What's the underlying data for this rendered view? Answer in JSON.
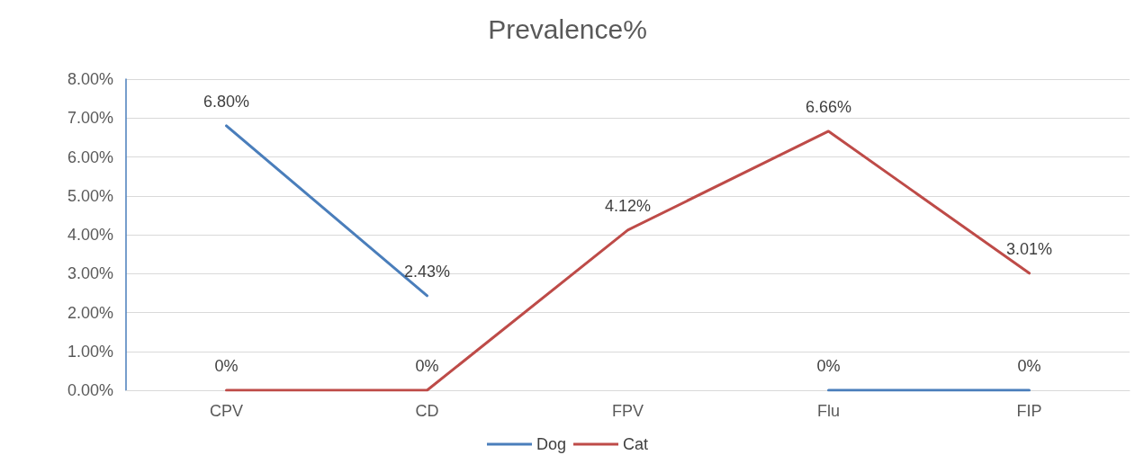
{
  "chart_data": {
    "type": "line",
    "title": "Prevalence%",
    "categories": [
      "CPV",
      "CD",
      "FPV",
      "Flu",
      "FIP"
    ],
    "series": [
      {
        "name": "Dog",
        "color": "#4a7ebb",
        "values": [
          6.8,
          2.43,
          null,
          0,
          0
        ],
        "value_labels": [
          "6.80%",
          "2.43%",
          null,
          "0%",
          "0%"
        ]
      },
      {
        "name": "Cat",
        "color": "#be4b48",
        "values": [
          0,
          0,
          4.12,
          6.66,
          3.01
        ],
        "value_labels": [
          "0%",
          "0%",
          "4.12%",
          "6.66%",
          "3.01%"
        ]
      }
    ],
    "ylim": [
      0,
      8
    ],
    "yticks": [
      {
        "value": 0,
        "label": "0.00%"
      },
      {
        "value": 1,
        "label": "1.00%"
      },
      {
        "value": 2,
        "label": "2.00%"
      },
      {
        "value": 3,
        "label": "3.00%"
      },
      {
        "value": 4,
        "label": "4.00%"
      },
      {
        "value": 5,
        "label": "5.00%"
      },
      {
        "value": 6,
        "label": "6.00%"
      },
      {
        "value": 7,
        "label": "7.00%"
      },
      {
        "value": 8,
        "label": "8.00%"
      }
    ],
    "grid": "y",
    "legend": "bottom",
    "marker": "none",
    "line_style": "solid"
  }
}
